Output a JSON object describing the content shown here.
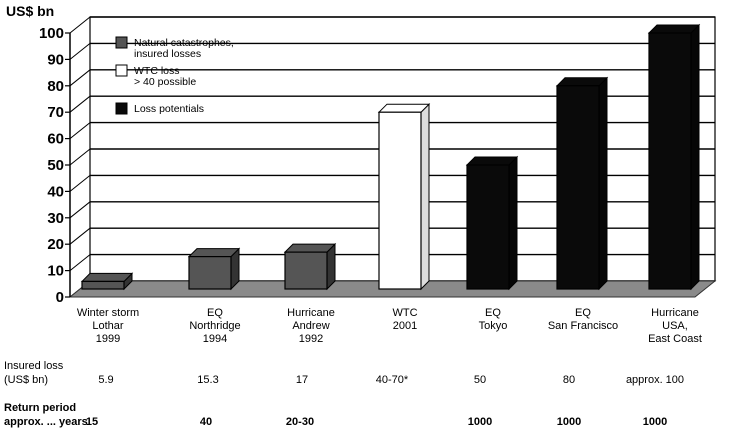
{
  "chart_data": {
    "type": "bar",
    "ylabel": "US$ bn",
    "ylim": [
      0,
      100
    ],
    "yticks": [
      0,
      10,
      20,
      30,
      40,
      50,
      60,
      70,
      80,
      90,
      100
    ],
    "categories": [
      {
        "lines": [
          "Winter storm",
          "Lothar",
          "1999"
        ],
        "value": 5.9,
        "group": "Natural catastrophes, insured losses"
      },
      {
        "lines": [
          "EQ",
          "Northridge",
          "1994"
        ],
        "value": 15.3,
        "group": "Natural catastrophes, insured losses"
      },
      {
        "lines": [
          "Hurricane",
          "Andrew",
          "1992"
        ],
        "value": 17,
        "group": "Natural catastrophes, insured losses"
      },
      {
        "lines": [
          "WTC",
          "2001"
        ],
        "value": 70,
        "group": "WTC loss > 40 possible"
      },
      {
        "lines": [
          "EQ",
          "Tokyo"
        ],
        "value": 50,
        "group": "Loss potentials"
      },
      {
        "lines": [
          "EQ",
          "San Francisco"
        ],
        "value": 80,
        "group": "Loss potentials"
      },
      {
        "lines": [
          "Hurricane",
          "USA,",
          "East Coast"
        ],
        "value": 100,
        "group": "Loss potentials"
      }
    ],
    "legend": [
      {
        "lines": [
          "Natural catastrophes,",
          "insured losses"
        ],
        "color": "#555555"
      },
      {
        "lines": [
          "WTC loss",
          "> 40 possible"
        ],
        "color": "#ffffff"
      },
      {
        "lines": [
          "Loss potentials"
        ],
        "color": "#0a0a0a"
      }
    ],
    "legend_position": "top-left",
    "grid": true
  },
  "table": {
    "insured_loss": {
      "label_lines": [
        "Insured loss",
        "(US$ bn)"
      ],
      "values": [
        "5.9",
        "15.3",
        "17",
        "40-70*",
        "50",
        "80",
        "approx. 100"
      ]
    },
    "return_period": {
      "label_lines": [
        "Return period",
        "approx. ... years"
      ],
      "values": [
        "15",
        "40",
        "20-30",
        "",
        "1000",
        "1000",
        "1000"
      ]
    }
  },
  "colors": {
    "natural": "#555555",
    "wtc": "#ffffff",
    "potential": "#0a0a0a",
    "floor": "#8a8a8a"
  }
}
